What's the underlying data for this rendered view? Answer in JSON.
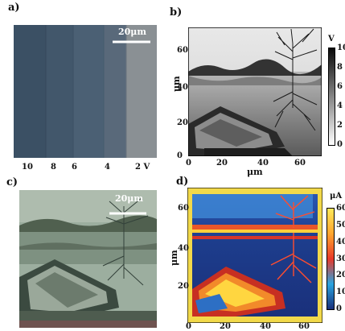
{
  "panels": {
    "a": {
      "label": "a)",
      "scalebar": "20μm",
      "voltage_labels": [
        "10",
        "8",
        "6",
        "4",
        "2 V"
      ]
    },
    "b": {
      "label": "b)",
      "ylabel": "μm",
      "xlabel": "μm",
      "x_ticks": [
        "0",
        "20",
        "40",
        "60"
      ],
      "y_ticks": [
        "0",
        "20",
        "40",
        "60"
      ],
      "colorbar_unit": "V",
      "colorbar_ticks": [
        "10",
        "8",
        "6",
        "4",
        "2",
        "0"
      ]
    },
    "c": {
      "label": "c)",
      "scalebar": "20μm"
    },
    "d": {
      "label": "d)",
      "ylabel": "μm",
      "x_ticks": [
        "0",
        "20",
        "40",
        "60"
      ],
      "y_ticks": [
        "20",
        "40",
        "60"
      ],
      "colorbar_unit": "μA",
      "colorbar_ticks": [
        "60",
        "50",
        "40",
        "30",
        "20",
        "10",
        "0"
      ]
    }
  },
  "colors": {
    "panel_a_bg": "#55677a",
    "panel_c_bg": "#8fa397",
    "heatmap_low": "#1a2f7a",
    "heatmap_high": "#ffe95a"
  }
}
